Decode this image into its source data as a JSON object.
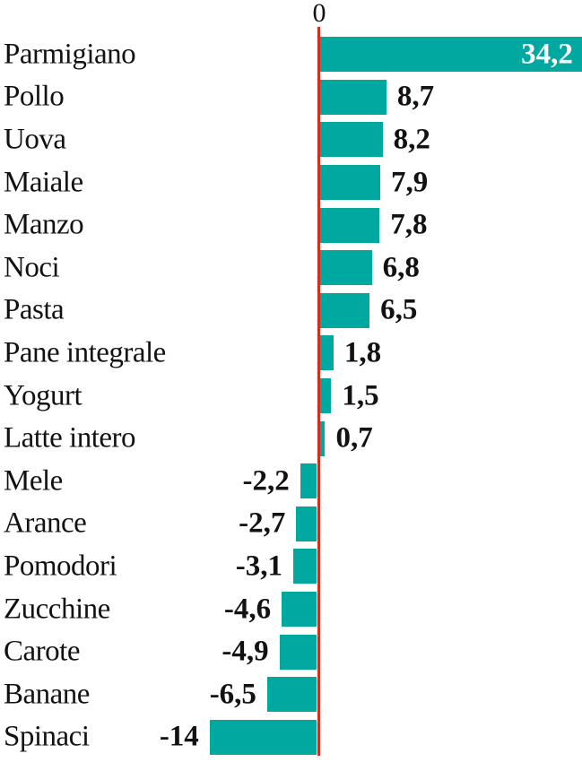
{
  "chart_data": {
    "type": "bar",
    "orientation": "horizontal",
    "zero_label": "0",
    "categories": [
      "Parmigiano",
      "Pollo",
      "Uova",
      "Maiale",
      "Manzo",
      "Noci",
      "Pasta",
      "Pane integrale",
      "Yogurt",
      "Latte intero",
      "Mele",
      "Arance",
      "Pomodori",
      "Zucchine",
      "Carote",
      "Banane",
      "Spinaci"
    ],
    "values": [
      34.2,
      8.7,
      8.2,
      7.9,
      7.8,
      6.8,
      6.5,
      1.8,
      1.5,
      0.7,
      -2.2,
      -2.7,
      -3.1,
      -4.6,
      -4.9,
      -6.5,
      -14
    ],
    "value_labels": [
      "34,2",
      "8,7",
      "8,2",
      "7,9",
      "7,8",
      "6,8",
      "6,5",
      "1,8",
      "1,5",
      "0,7",
      "-2,2",
      "-2,7",
      "-3,1",
      "-4,6",
      "-4,9",
      "-6,5",
      "-14"
    ],
    "value_inside_indices": [
      0
    ],
    "xlim": [
      -14,
      34.2
    ],
    "grid": false,
    "legend": "none",
    "colors": {
      "bar": "#00a8a0",
      "zero_line": "#d62d23",
      "text": "#121212",
      "value_inside_bar": "#ffffff"
    }
  }
}
